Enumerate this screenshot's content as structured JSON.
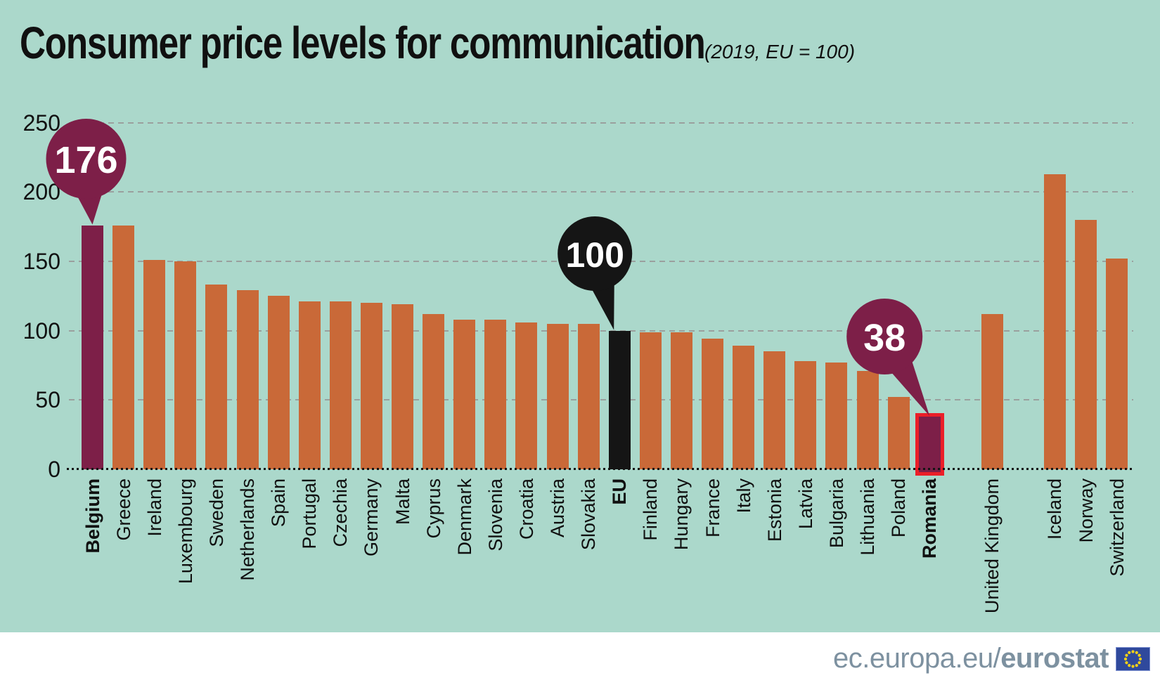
{
  "header": {
    "title": "Consumer price levels for communication",
    "subtitle": "(2019, EU = 100)"
  },
  "footer": {
    "site_regular": "ec.europa.eu/",
    "site_bold": "eurostat"
  },
  "colors": {
    "background": "#abd8cb",
    "bar_default": "#c96938",
    "bar_highlight": "#7d1f48",
    "bar_eu": "#151515",
    "romania_outline": "#eb1f28",
    "gridline": "#9aa09e",
    "axis_text": "#111111",
    "callout_text": "#ffffff",
    "footer_text": "#7d91a0",
    "flag_blue": "#2f499c",
    "flag_stars": "#f7d117"
  },
  "chart_data": {
    "type": "bar",
    "title": "Consumer price levels for communication",
    "subtitle": "(2019, EU = 100)",
    "unit": "price level index, EU = 100",
    "ylim": [
      0,
      250
    ],
    "yticks": [
      250,
      200,
      150,
      100,
      50,
      0
    ],
    "grid": "horizontal dashed",
    "legend": "none",
    "categories": [
      "Belgium",
      "Greece",
      "Ireland",
      "Luxembourg",
      "Sweden",
      "Netherlands",
      "Spain",
      "Portugal",
      "Czechia",
      "Germany",
      "Malta",
      "Cyprus",
      "Denmark",
      "Slovenia",
      "Croatia",
      "Austria",
      "Slovakia",
      "EU",
      "Finland",
      "Hungary",
      "France",
      "Italy",
      "Estonia",
      "Latvia",
      "Bulgaria",
      "Lithuania",
      "Poland",
      "Romania",
      "United Kingdom",
      "Iceland",
      "Norway",
      "Switzerland"
    ],
    "values": [
      176,
      176,
      151,
      150,
      133,
      129,
      125,
      121,
      121,
      120,
      119,
      112,
      108,
      108,
      106,
      105,
      105,
      100,
      99,
      99,
      94,
      89,
      85,
      78,
      77,
      71,
      52,
      38,
      112,
      213,
      180,
      152
    ],
    "bold_categories": [
      "Belgium",
      "EU",
      "Romania"
    ],
    "bar_styles": {
      "Belgium": "highlight",
      "EU": "eu",
      "Romania": "highlight-outlined"
    },
    "group_gaps_after": [
      "Romania",
      "United Kingdom"
    ],
    "callouts": [
      {
        "category": "Belgium",
        "label": "176"
      },
      {
        "category": "EU",
        "label": "100"
      },
      {
        "category": "Romania",
        "label": "38"
      }
    ]
  }
}
